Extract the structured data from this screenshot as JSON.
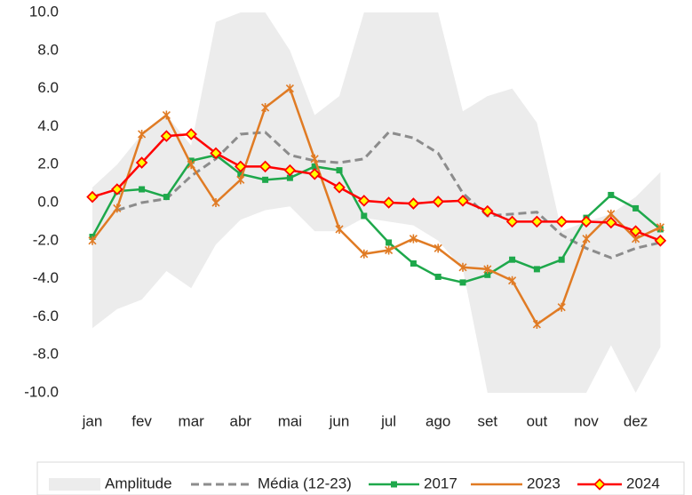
{
  "chart_data": {
    "type": "line",
    "categories": [
      "jan",
      null,
      "fev",
      null,
      "mar",
      null,
      "abr",
      null,
      "mai",
      null,
      "jun",
      null,
      "jul",
      null,
      "ago",
      null,
      "set",
      null,
      "out",
      null,
      "nov",
      null,
      "dez",
      null
    ],
    "ylim": [
      -10,
      10
    ],
    "yticks": [
      {
        "value": -10,
        "label": "-10.0"
      },
      {
        "value": -8,
        "label": "-8.0"
      },
      {
        "value": -6,
        "label": "-6.0"
      },
      {
        "value": -4,
        "label": "-4.0"
      },
      {
        "value": -2,
        "label": "-2.0"
      },
      {
        "value": 0,
        "label": "0.0"
      },
      {
        "value": 2,
        "label": "2.0"
      },
      {
        "value": 4,
        "label": "4.0"
      },
      {
        "value": 6,
        "label": "6.0"
      },
      {
        "value": 8,
        "label": "8.0"
      },
      {
        "value": 10,
        "label": "10.0"
      }
    ],
    "legend": "bottom",
    "series": [
      {
        "name": "Amplitude",
        "color": "#ececec",
        "kind": "band",
        "upper": [
          0.8,
          2.0,
          3.6,
          4.6,
          3.0,
          9.5,
          10,
          10,
          8.0,
          4.6,
          5.6,
          10,
          10,
          10,
          10,
          4.8,
          5.6,
          6.0,
          4.2,
          -1.5,
          -1.0,
          -0.6,
          0.3,
          1.6
        ],
        "lower": [
          -6.6,
          -5.6,
          -5.1,
          -3.6,
          -4.5,
          -2.2,
          -0.9,
          -0.4,
          -0.2,
          -1.5,
          -1.5,
          -0.8,
          -1.0,
          -1.2,
          -2.0,
          -3.5,
          -10,
          -10,
          -10,
          -10,
          -10,
          -7.5,
          -10,
          -7.6
        ]
      },
      {
        "name": "Média (12-23)",
        "color": "#8c8c8c",
        "kind": "dashed",
        "values": [
          null,
          -0.4,
          0.0,
          0.2,
          1.4,
          2.3,
          3.6,
          3.7,
          2.5,
          2.2,
          2.1,
          2.3,
          3.7,
          3.4,
          2.6,
          0.5,
          -0.7,
          -0.6,
          -0.5,
          -1.7,
          -2.4,
          -2.9,
          -2.4,
          -2.1
        ]
      },
      {
        "name": "2017",
        "color": "#1ea84b",
        "kind": "square",
        "values": [
          -1.8,
          0.6,
          0.7,
          0.3,
          2.2,
          2.5,
          1.5,
          1.2,
          1.3,
          1.9,
          1.7,
          -0.7,
          -2.1,
          -3.2,
          -3.9,
          -4.2,
          -3.8,
          -3.0,
          -3.5,
          -3.0,
          -0.8,
          0.4,
          -0.3,
          -1.4
        ]
      },
      {
        "name": "2023",
        "color": "#e07b24",
        "kind": "star",
        "values": [
          -2.0,
          -0.3,
          3.6,
          4.6,
          2.0,
          0.0,
          1.2,
          5.0,
          6.0,
          2.3,
          -1.4,
          -2.7,
          -2.5,
          -1.9,
          -2.4,
          -3.4,
          -3.5,
          -4.1,
          -6.4,
          -5.5,
          -1.9,
          -0.6,
          -1.9,
          -1.3
        ]
      },
      {
        "name": "2024",
        "color": "#ff0000",
        "kind": "diamond",
        "marker_fill": "#ffff00",
        "values": [
          0.3,
          0.7,
          2.1,
          3.5,
          3.6,
          2.6,
          1.9,
          1.9,
          1.7,
          1.5,
          0.8,
          0.1,
          0.0,
          -0.05,
          0.05,
          0.1,
          -0.45,
          -1.0,
          -1.0,
          -1.0,
          -1.0,
          -1.05,
          -1.5,
          -2.0
        ]
      }
    ]
  }
}
